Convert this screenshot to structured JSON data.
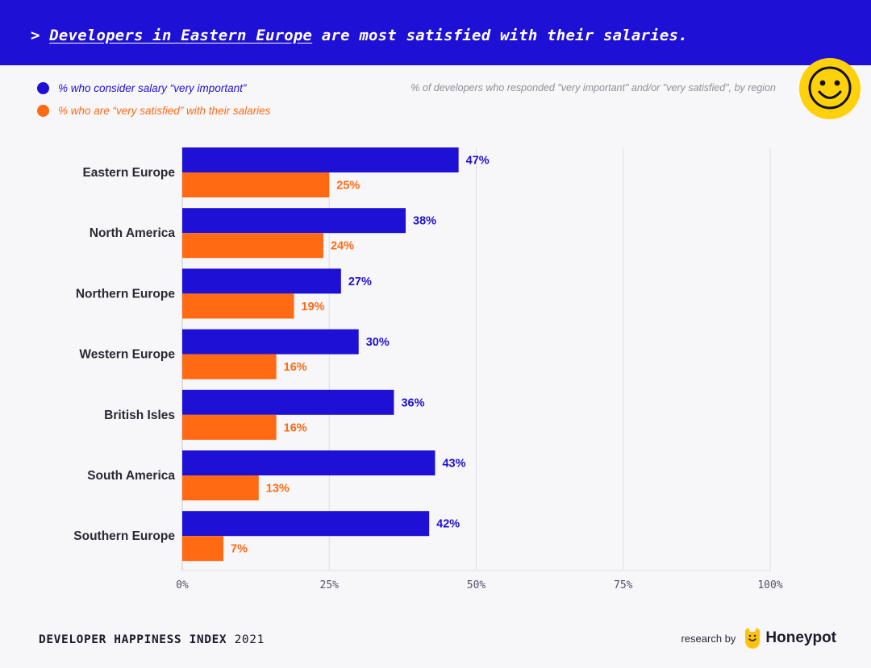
{
  "header": {
    "prefix": "> ",
    "headline_link": "Developers in Eastern Europe",
    "headline_rest": " are most satisfied with their salaries."
  },
  "legend": [
    {
      "label": "% who consider salary “very important”",
      "color": "#1e10d4"
    },
    {
      "label": "% who are “very satisfied” with their salaries",
      "color": "#ff6a13"
    }
  ],
  "note": "% of developers who responded \"very important\" and/or \"very satisfied\", by region",
  "chart_data": {
    "type": "bar",
    "orientation": "horizontal",
    "categories": [
      "Eastern Europe",
      "North America",
      "Northern Europe",
      "Western Europe",
      "British Isles",
      "South America",
      "Southern Europe"
    ],
    "series": [
      {
        "name": "% who consider salary “very important”",
        "color": "#1e10d4",
        "values": [
          47,
          38,
          27,
          30,
          36,
          43,
          42
        ]
      },
      {
        "name": "% who are “very satisfied” with their salaries",
        "color": "#ff6a13",
        "values": [
          25,
          24,
          19,
          16,
          16,
          13,
          7
        ]
      }
    ],
    "value_suffix": "%",
    "xlim": [
      0,
      100
    ],
    "xticks": [
      0,
      25,
      50,
      75,
      100
    ],
    "xtick_labels": [
      "0%",
      "25%",
      "50%",
      "75%",
      "100%"
    ],
    "grid": true,
    "legend_position": "top-left"
  },
  "footer": {
    "title": "DEVELOPER HAPPINESS INDEX",
    "year": "2021",
    "research_by": "research by",
    "brand": "Honeypot"
  },
  "colors": {
    "header_bg": "#1e10d4",
    "accent_orange": "#ff6a13",
    "smiley_yellow": "#ffd10a",
    "background": "#f7f6f9"
  },
  "icons": {
    "mood": "smiley-face-icon",
    "brand": "honeypot-bear-icon"
  }
}
